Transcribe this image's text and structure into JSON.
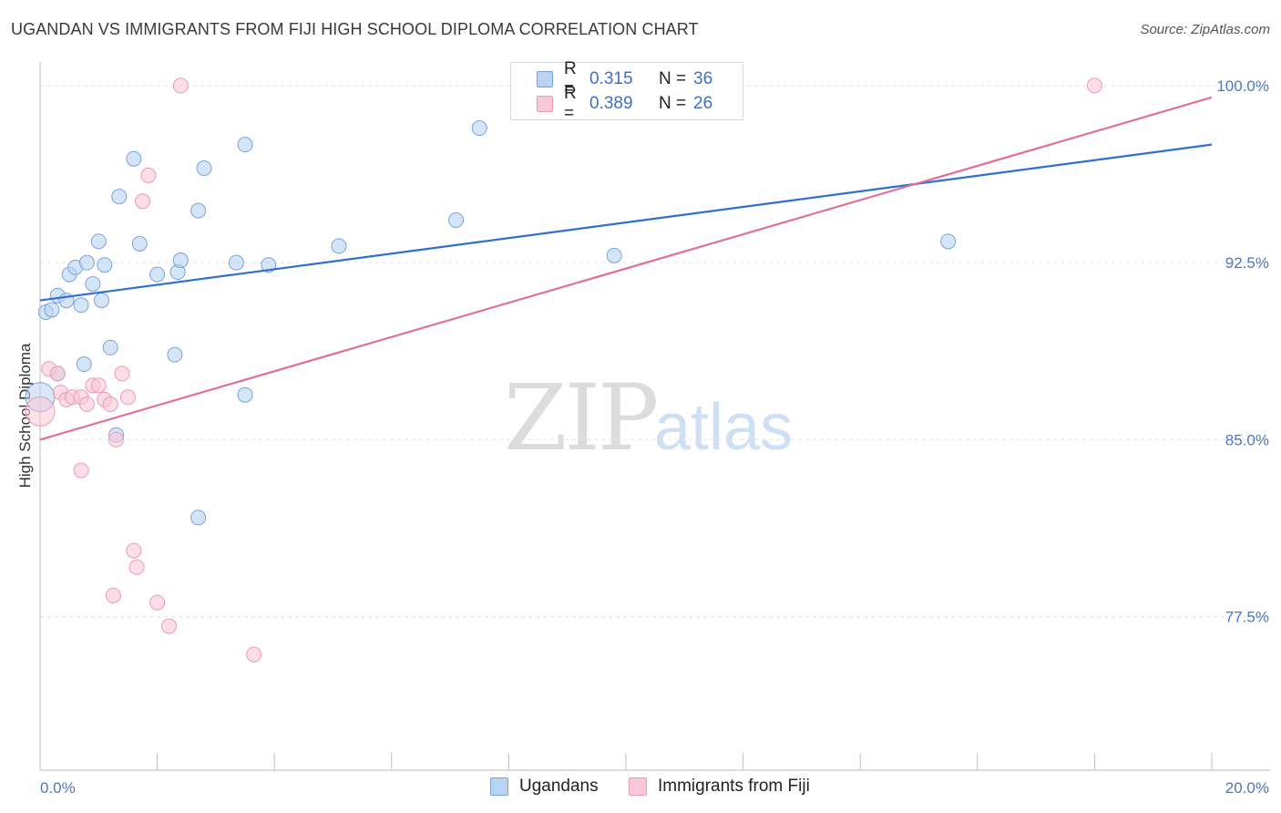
{
  "title": "UGANDAN VS IMMIGRANTS FROM FIJI HIGH SCHOOL DIPLOMA CORRELATION CHART",
  "source": "Source: ZipAtlas.com",
  "watermark": {
    "zip": "ZIP",
    "atlas": "atlas"
  },
  "legend": {
    "r_label": "R =",
    "n_label": "N =",
    "rows": [
      {
        "r": "0.315",
        "n": "36"
      },
      {
        "r": "0.389",
        "n": "26"
      }
    ]
  },
  "colors": {
    "ugandans_fill": "#b9d3f3",
    "ugandans_stroke": "#7aa3da",
    "ugandans_line": "#2f6fcf",
    "fiji_fill": "#f9c8d6",
    "fiji_stroke": "#ec9bb3",
    "fiji_line": "#e0709a",
    "tick_text": "#4a78c2",
    "grid": "#e3e3e3"
  },
  "chart_data": {
    "type": "scatter",
    "xlabel": "",
    "ylabel": "High School Diploma",
    "xlim": [
      0,
      20
    ],
    "ylim": [
      71,
      101
    ],
    "x_tick_labels": [
      "0.0%",
      "20.0%"
    ],
    "y_ticks": [
      77.5,
      85.0,
      92.5,
      100.0
    ],
    "y_tick_labels": [
      "77.5%",
      "85.0%",
      "92.5%",
      "100.0%"
    ],
    "grid": true,
    "legend_position": "top-center",
    "series": [
      {
        "name": "Ugandans",
        "r": 0.315,
        "n": 36,
        "trend": {
          "x": [
            0,
            20
          ],
          "y": [
            90.9,
            97.5
          ]
        },
        "points": [
          {
            "x": 0.1,
            "y": 90.4
          },
          {
            "x": 0.2,
            "y": 90.5
          },
          {
            "x": 0.3,
            "y": 91.1
          },
          {
            "x": 0.45,
            "y": 90.9
          },
          {
            "x": 0.5,
            "y": 92.0
          },
          {
            "x": 0.6,
            "y": 92.3
          },
          {
            "x": 0.7,
            "y": 90.7
          },
          {
            "x": 0.8,
            "y": 92.5
          },
          {
            "x": 0.9,
            "y": 91.6
          },
          {
            "x": 1.0,
            "y": 93.4
          },
          {
            "x": 1.05,
            "y": 90.9
          },
          {
            "x": 1.1,
            "y": 92.4
          },
          {
            "x": 1.2,
            "y": 88.9
          },
          {
            "x": 1.35,
            "y": 95.3
          },
          {
            "x": 1.6,
            "y": 96.9
          },
          {
            "x": 1.7,
            "y": 93.3
          },
          {
            "x": 2.0,
            "y": 92.0
          },
          {
            "x": 2.35,
            "y": 92.1
          },
          {
            "x": 2.4,
            "y": 92.6
          },
          {
            "x": 2.3,
            "y": 88.6
          },
          {
            "x": 2.7,
            "y": 94.7
          },
          {
            "x": 2.8,
            "y": 96.5
          },
          {
            "x": 3.35,
            "y": 92.5
          },
          {
            "x": 3.5,
            "y": 97.5
          },
          {
            "x": 3.9,
            "y": 92.4
          },
          {
            "x": 5.1,
            "y": 93.2
          },
          {
            "x": 7.1,
            "y": 94.3
          },
          {
            "x": 7.5,
            "y": 98.2
          },
          {
            "x": 9.8,
            "y": 92.8
          },
          {
            "x": 15.5,
            "y": 93.4
          },
          {
            "x": 0.3,
            "y": 87.8
          },
          {
            "x": 0.75,
            "y": 88.2
          },
          {
            "x": 1.3,
            "y": 85.2
          },
          {
            "x": 3.5,
            "y": 86.9
          },
          {
            "x": 2.7,
            "y": 81.7
          },
          {
            "x": 0.0,
            "y": 86.8
          }
        ]
      },
      {
        "name": "Immigrants from Fiji",
        "r": 0.389,
        "n": 26,
        "trend": {
          "x": [
            0,
            20
          ],
          "y": [
            85.0,
            99.5
          ]
        },
        "points": [
          {
            "x": 0.0,
            "y": 86.2
          },
          {
            "x": 0.15,
            "y": 88.0
          },
          {
            "x": 0.3,
            "y": 87.8
          },
          {
            "x": 0.35,
            "y": 87.0
          },
          {
            "x": 0.45,
            "y": 86.7
          },
          {
            "x": 0.55,
            "y": 86.8
          },
          {
            "x": 0.7,
            "y": 86.8
          },
          {
            "x": 0.8,
            "y": 86.5
          },
          {
            "x": 0.9,
            "y": 87.3
          },
          {
            "x": 1.0,
            "y": 87.3
          },
          {
            "x": 1.1,
            "y": 86.7
          },
          {
            "x": 1.2,
            "y": 86.5
          },
          {
            "x": 1.4,
            "y": 87.8
          },
          {
            "x": 1.5,
            "y": 86.8
          },
          {
            "x": 1.3,
            "y": 85.0
          },
          {
            "x": 0.7,
            "y": 83.7
          },
          {
            "x": 1.75,
            "y": 95.1
          },
          {
            "x": 1.85,
            "y": 96.2
          },
          {
            "x": 2.4,
            "y": 100.0
          },
          {
            "x": 1.6,
            "y": 80.3
          },
          {
            "x": 1.65,
            "y": 79.6
          },
          {
            "x": 1.25,
            "y": 78.4
          },
          {
            "x": 2.0,
            "y": 78.1
          },
          {
            "x": 2.2,
            "y": 77.1
          },
          {
            "x": 3.65,
            "y": 75.9
          },
          {
            "x": 18.0,
            "y": 100.0
          }
        ]
      }
    ]
  }
}
